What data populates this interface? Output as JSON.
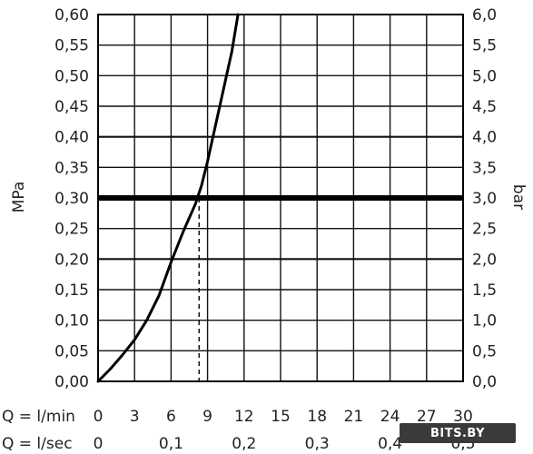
{
  "chart_data": {
    "type": "line",
    "title": "",
    "ylabel_left": "MPa",
    "ylabel_right": "bar",
    "x_row1_label": "Q = l/min",
    "x_row2_label": "Q = l/sec",
    "x_ticks_lmin": [
      "0",
      "3",
      "6",
      "9",
      "12",
      "15",
      "18",
      "21",
      "24",
      "27",
      "30"
    ],
    "x_ticks_lsec": [
      {
        "value": 0,
        "label": "0"
      },
      {
        "value": 0.1,
        "label": "0,1"
      },
      {
        "value": 0.2,
        "label": "0,2"
      },
      {
        "value": 0.3,
        "label": "0,3"
      },
      {
        "value": 0.4,
        "label": "0,4"
      },
      {
        "value": 0.5,
        "label": "0,5"
      }
    ],
    "y_ticks_mpa": [
      "0,00",
      "0,05",
      "0,10",
      "0,15",
      "0,20",
      "0,25",
      "0,30",
      "0,35",
      "0,40",
      "0,45",
      "0,50",
      "0,55",
      "0,60"
    ],
    "y_ticks_bar": [
      "0,0",
      "0,5",
      "1,0",
      "1,5",
      "2,0",
      "2,5",
      "3,0",
      "3,5",
      "4,0",
      "4,5",
      "5,0",
      "5,5",
      "6,0"
    ],
    "xlim": [
      0,
      30
    ],
    "ylim": [
      0,
      0.6
    ],
    "major_gridlines_mpa": [
      0.2,
      0.4
    ],
    "threshold_mpa": 0.3,
    "threshold_flow_lmin": 8.3,
    "series": [
      {
        "x": [
          0,
          1,
          2,
          3,
          4,
          5,
          6,
          7,
          8,
          8.5,
          9,
          10,
          11,
          11.5
        ],
        "y": [
          0,
          0.02,
          0.043,
          0.068,
          0.1,
          0.14,
          0.195,
          0.245,
          0.29,
          0.32,
          0.36,
          0.45,
          0.54,
          0.6
        ]
      }
    ]
  },
  "watermark": "BITS.BY"
}
